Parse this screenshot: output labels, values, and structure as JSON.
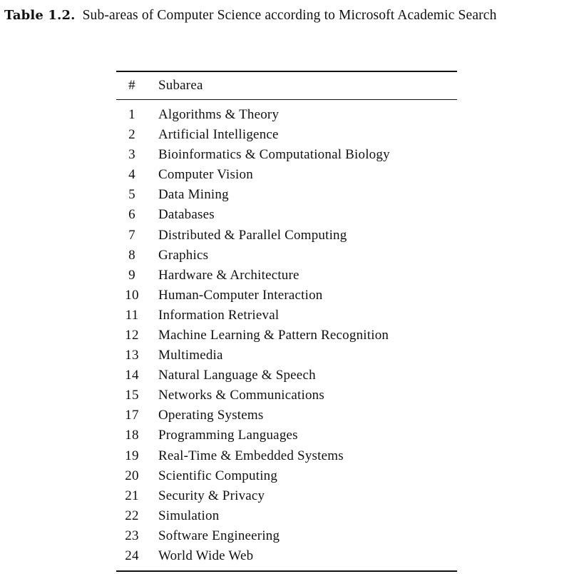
{
  "caption": {
    "label": "Table 1.2.",
    "text": "Sub-areas of Computer Science according to Microsoft Academic Search"
  },
  "table": {
    "columns": [
      "#",
      "Subarea"
    ],
    "rows": [
      {
        "num": "1",
        "subarea": "Algorithms & Theory"
      },
      {
        "num": "2",
        "subarea": "Artificial Intelligence"
      },
      {
        "num": "3",
        "subarea": "Bioinformatics & Computational Biology"
      },
      {
        "num": "4",
        "subarea": "Computer Vision"
      },
      {
        "num": "5",
        "subarea": "Data Mining"
      },
      {
        "num": "6",
        "subarea": "Databases"
      },
      {
        "num": "7",
        "subarea": "Distributed & Parallel Computing"
      },
      {
        "num": "8",
        "subarea": "Graphics"
      },
      {
        "num": "9",
        "subarea": "Hardware & Architecture"
      },
      {
        "num": "10",
        "subarea": "Human-Computer Interaction"
      },
      {
        "num": "11",
        "subarea": "Information Retrieval"
      },
      {
        "num": "12",
        "subarea": "Machine Learning & Pattern Recognition"
      },
      {
        "num": "13",
        "subarea": "Multimedia"
      },
      {
        "num": "14",
        "subarea": "Natural Language & Speech"
      },
      {
        "num": "15",
        "subarea": "Networks & Communications"
      },
      {
        "num": "17",
        "subarea": "Operating Systems"
      },
      {
        "num": "18",
        "subarea": "Programming Languages"
      },
      {
        "num": "19",
        "subarea": "Real-Time & Embedded Systems"
      },
      {
        "num": "20",
        "subarea": "Scientific Computing"
      },
      {
        "num": "21",
        "subarea": "Security & Privacy"
      },
      {
        "num": "22",
        "subarea": "Simulation"
      },
      {
        "num": "23",
        "subarea": "Software Engineering"
      },
      {
        "num": "24",
        "subarea": "World Wide Web"
      }
    ]
  }
}
